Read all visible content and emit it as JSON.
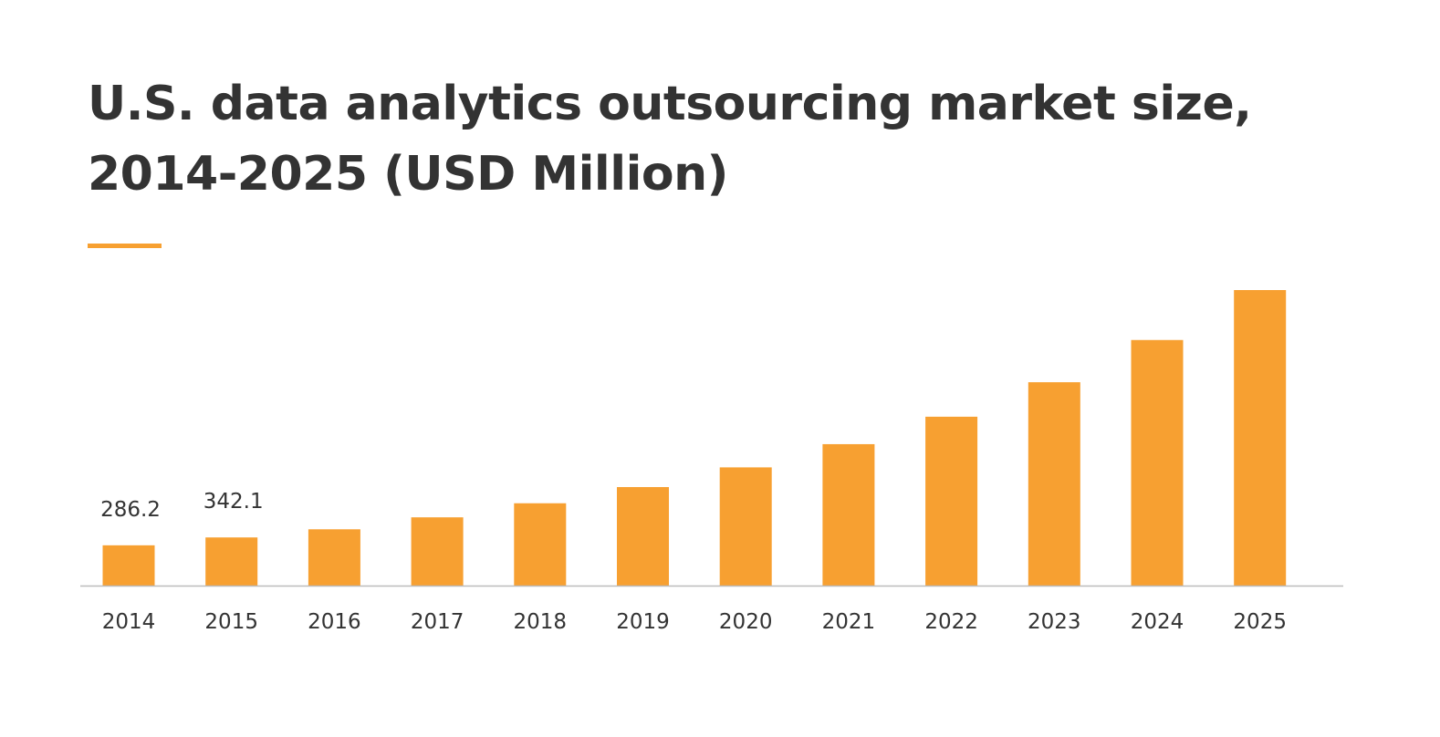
{
  "chart_data": {
    "type": "bar",
    "title": "U.S. data analytics outsourcing market size, 2014-2025 (USD Million)",
    "xlabel": "",
    "ylabel": "",
    "categories": [
      "2014",
      "2015",
      "2016",
      "2017",
      "2018",
      "2019",
      "2020",
      "2021",
      "2022",
      "2023",
      "2024",
      "2025"
    ],
    "values": [
      286.2,
      342.1,
      400,
      485,
      585,
      700,
      840,
      1005,
      1200,
      1445,
      1745,
      2100
    ],
    "data_labels": {
      "0": "286.2",
      "1": "342.1"
    },
    "ylim": [
      0,
      2100
    ],
    "grid": false,
    "colors": {
      "bar": "#F7A031",
      "accent": "#F7A031",
      "axis": "#BBBBBB",
      "text": "#333333"
    }
  }
}
